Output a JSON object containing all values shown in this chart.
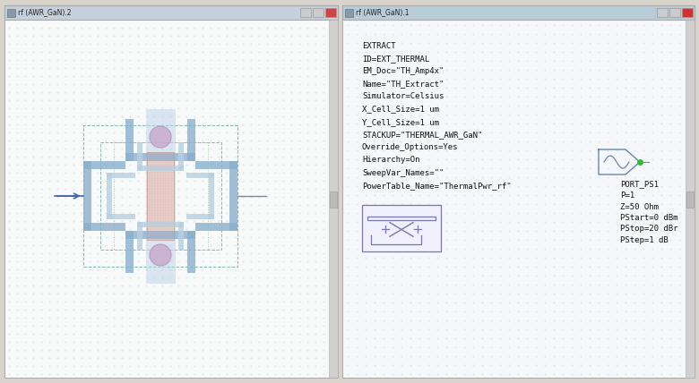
{
  "fig_width": 7.8,
  "fig_height": 4.28,
  "bg_color": "#d8d4cc",
  "window1_title": "rf (AWR_GaN).2",
  "window2_title": "rf (AWR_GaN).1",
  "extract_lines": [
    "EXTRACT",
    "ID=EXT_THERMAL",
    "EM_Doc=\"TH_Amp4x\"",
    "Name=\"TH_Extract\"",
    "Simulator=Celsius",
    "X_Cell_Size=1 um",
    "Y_Cell_Size=1 um",
    "STACKUP=\"THERMAL_AWR_GaN\"",
    "Override_Options=Yes",
    "Hierarchy=On",
    "SweepVar_Names=\"\"",
    "PowerTable_Name=\"ThermalPwr_rf\""
  ],
  "port_lines": [
    "PORT_PS1",
    "P=1",
    "Z=50 Ohm",
    "PStart=0 dBm",
    "PStop=20 dBr",
    "PStep=1 dB"
  ],
  "window_bg": "#f2f4f6",
  "titlebar_bg": "#c8d4de",
  "text_color": "#111111",
  "schematic_blue": "#8ab0cc",
  "schematic_light": "#b8cfe0",
  "schematic_fill": "#d8e8f2",
  "grid_green": "#a0c8a0",
  "grid_teal": "#88bbb0",
  "extract_box_color": "#7878aa",
  "port_symbol_color": "#6688aa",
  "port_dot_color": "#33bb33",
  "center_hatch_color": "#e8d0c8",
  "purple_circle": "#c8a8cc",
  "center_strip": "#c0d4e8"
}
